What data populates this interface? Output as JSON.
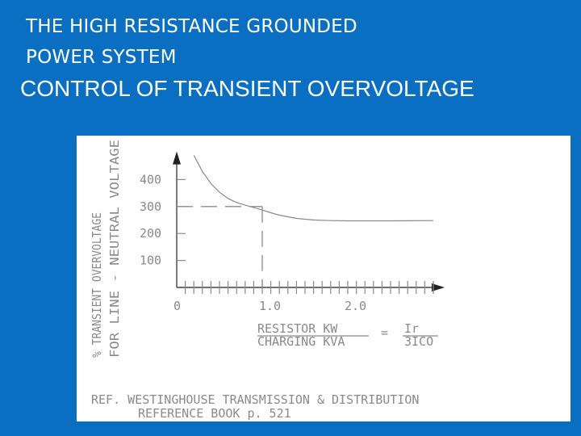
{
  "slide": {
    "title_line1": "THE HIGH RESISTANCE GROUNDED",
    "title_line2": "POWER SYSTEM",
    "heading": "CONTROL OF TRANSIENT OVERVOLTAGE"
  },
  "chart_data": {
    "type": "line",
    "title": "",
    "ylabel_line1": "% TRANSIENT OVERVOLTAGE",
    "ylabel_line2": "FOR LINE - NEUTRAL VOLTAGE",
    "y_ticks": [
      "100",
      "200",
      "300",
      "400"
    ],
    "x_ticks": [
      "0",
      "1.0",
      "2.0"
    ],
    "ylim": [
      0,
      480
    ],
    "xlim": [
      0,
      3.0
    ],
    "x_minor_tick_step": 0.1,
    "series": [
      {
        "x": [
          0.2,
          0.3,
          0.4,
          0.5,
          0.6,
          0.7,
          0.8,
          0.9,
          1.0,
          1.1,
          1.2,
          1.4,
          1.6,
          1.8,
          2.0,
          2.5,
          3.0
        ],
        "y": [
          490,
          430,
          385,
          353,
          330,
          315,
          305,
          296,
          287,
          277,
          268,
          256,
          250,
          248,
          247,
          247,
          248
        ]
      }
    ],
    "reference_point": {
      "x": 1.0,
      "y": 300
    },
    "xlabel_numerator": "RESISTOR KW",
    "xlabel_denominator": "CHARGING KVA",
    "equals_sign": "=",
    "ratio_numerator": "Ir",
    "ratio_denominator": "3ICO",
    "reference_line1": "REF. WESTINGHOUSE TRANSMISSION & DISTRIBUTION",
    "reference_line2": "REFERENCE BOOK p. 521",
    "colors": {
      "background": "#0a6fc0",
      "panel": "#ffffff",
      "ink": "#8a8a8a",
      "axis": "#444444"
    }
  }
}
